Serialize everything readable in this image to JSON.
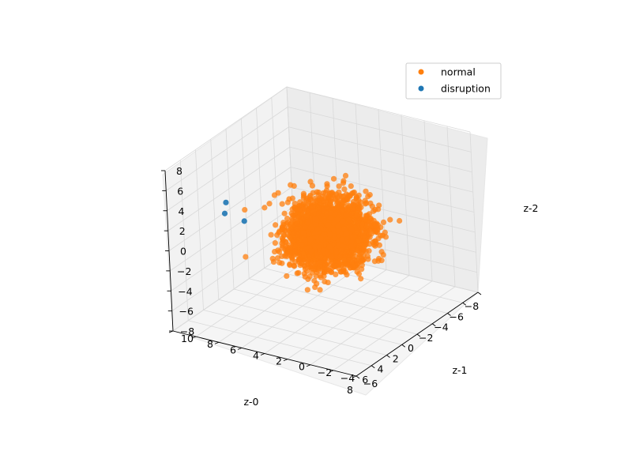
{
  "chart_data": {
    "type": "scatter",
    "projection": "3d",
    "title": "",
    "axes": {
      "x": {
        "label": "z-0",
        "range": [
          -8,
          8
        ],
        "ticks": [
          -8,
          -6,
          -4,
          -2,
          0,
          2,
          4,
          6,
          8
        ]
      },
      "y": {
        "label": "z-1",
        "range": [
          -6,
          10
        ],
        "ticks": [
          -6,
          -4,
          -2,
          0,
          2,
          4,
          6,
          8,
          10
        ]
      },
      "z": {
        "label": "z-2",
        "range": [
          -8,
          8
        ],
        "ticks": [
          -8,
          -6,
          -4,
          -2,
          0,
          2,
          4,
          6,
          8
        ]
      }
    },
    "grid": true,
    "legend_position": "top-right",
    "series": [
      {
        "name": "normal",
        "color": "#ff7f0e",
        "distribution": "dense roughly spherical cloud centred near the origin, about ±6 on each axis",
        "points_sample": [
          [
            -4.5,
            3.0,
            0.5
          ],
          [
            -4.0,
            1.5,
            -1.5
          ],
          [
            -3.0,
            0.0,
            3.0
          ],
          [
            -2.5,
            4.0,
            1.0
          ],
          [
            -2.0,
            -1.5,
            -3.0
          ],
          [
            -1.0,
            2.0,
            4.0
          ],
          [
            0.0,
            0.0,
            0.0
          ],
          [
            0.5,
            5.0,
            -1.0
          ],
          [
            1.0,
            -2.0,
            2.0
          ],
          [
            1.5,
            3.5,
            5.0
          ],
          [
            2.0,
            1.0,
            -4.5
          ],
          [
            3.0,
            -1.0,
            1.5
          ],
          [
            3.5,
            4.5,
            3.5
          ],
          [
            4.0,
            2.5,
            -2.5
          ],
          [
            4.5,
            -0.5,
            -1.0
          ],
          [
            5.0,
            3.0,
            2.0
          ],
          [
            -5.0,
            0.5,
            -2.0
          ],
          [
            -3.5,
            -2.5,
            0.5
          ],
          [
            2.5,
            -3.0,
            -2.0
          ],
          [
            0.0,
            6.0,
            2.5
          ],
          [
            -1.5,
            6.5,
            -3.0
          ],
          [
            5.5,
            5.0,
            -0.5
          ],
          [
            -5.5,
            4.0,
            -3.5
          ],
          [
            1.0,
            8.0,
            1.0
          ]
        ]
      },
      {
        "name": "disruption",
        "color": "#1f77b4",
        "points_sample": [
          [
            5.5,
            6.5,
            4.5
          ],
          [
            5.0,
            7.0,
            3.0
          ],
          [
            4.0,
            6.0,
            2.0
          ]
        ]
      }
    ]
  }
}
